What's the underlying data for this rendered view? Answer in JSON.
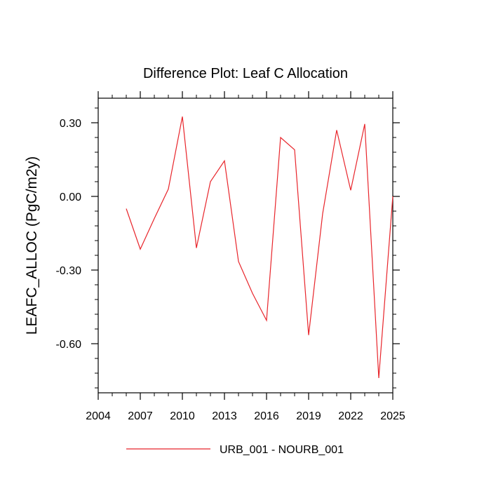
{
  "chart_data": {
    "type": "line",
    "title": "Difference Plot: Leaf C Allocation",
    "xlabel": "",
    "ylabel": "LEAFC_ALLOC  (PgC/m2y)",
    "xlim": [
      2004,
      2025
    ],
    "ylim": [
      -0.8,
      0.4
    ],
    "x_ticks": [
      2004,
      2007,
      2010,
      2013,
      2016,
      2019,
      2022,
      2025
    ],
    "x_tick_labels": [
      "2004",
      "2007",
      "2010",
      "2013",
      "2016",
      "2019",
      "2022",
      "2025"
    ],
    "y_ticks": [
      0.3,
      0.0,
      -0.3,
      -0.6
    ],
    "y_tick_labels": [
      "0.30",
      "0.00",
      "-0.30",
      "-0.60"
    ],
    "grid": false,
    "legend_position": "bottom",
    "series": [
      {
        "name": "URB_001 - NOURB_001",
        "color": "#e8252b",
        "x": [
          2006,
          2007,
          2008,
          2009,
          2010,
          2011,
          2012,
          2013,
          2014,
          2015,
          2016,
          2017,
          2018,
          2019,
          2020,
          2021,
          2022,
          2023,
          2024,
          2025
        ],
        "y": [
          -0.05,
          -0.215,
          -0.09,
          0.03,
          0.325,
          -0.21,
          0.06,
          0.145,
          -0.265,
          -0.395,
          -0.505,
          0.24,
          0.19,
          -0.565,
          -0.07,
          0.27,
          0.025,
          0.295,
          -0.74,
          0.0
        ]
      }
    ]
  }
}
